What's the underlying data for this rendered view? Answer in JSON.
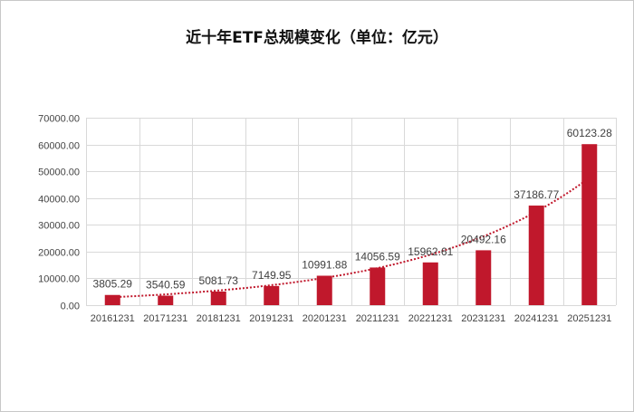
{
  "chart_data": {
    "type": "bar",
    "title": "近十年ETF总规模变化（单位：亿元）",
    "xlabel": "",
    "ylabel": "",
    "ylim": [
      0,
      70000
    ],
    "yticks": [
      "0.00",
      "10000.00",
      "20000.00",
      "30000.00",
      "40000.00",
      "50000.00",
      "60000.00",
      "70000.00"
    ],
    "grid": true,
    "legend": null,
    "categories": [
      "20161231",
      "20171231",
      "20181231",
      "20191231",
      "20201231",
      "20211231",
      "20221231",
      "20231231",
      "20241231",
      "20251231"
    ],
    "values": [
      3805.29,
      3540.59,
      5081.73,
      7149.95,
      10991.88,
      14056.59,
      15962.61,
      20492.16,
      37186.77,
      60123.28
    ],
    "data_labels": [
      "3805.29",
      "3540.59",
      "5081.73",
      "7149.95",
      "10991.88",
      "14056.59",
      "15962.61",
      "20492.16",
      "37186.77",
      "60123.28"
    ],
    "trendline": {
      "type": "exponential",
      "style": "dotted",
      "color": "#C0182C"
    },
    "bar_color": "#C0182C"
  },
  "title": "近十年ETF总规模变化（单位：亿元）"
}
